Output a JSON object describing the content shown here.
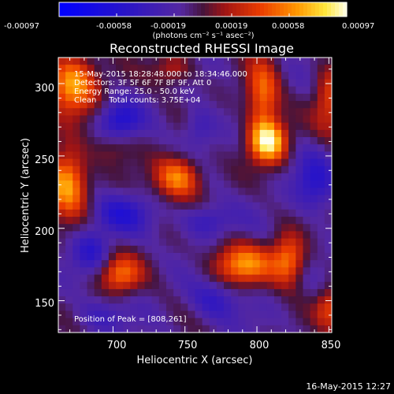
{
  "colorbar": {
    "ticks": [
      "-0.00097",
      "-0.00058",
      "-0.00019",
      "0.00019",
      "0.00058",
      "0.00097"
    ],
    "unit_label": "(photons cm⁻² s⁻¹ asec⁻²)",
    "range": [
      -0.00097,
      0.00097
    ]
  },
  "chart_data": {
    "type": "heatmap",
    "title": "Reconstructed RHESSI Image",
    "xlabel": "Heliocentric X (arcsec)",
    "ylabel": "Heliocentric Y (arcsec)",
    "xlim": [
      662,
      852
    ],
    "ylim": [
      128,
      318
    ],
    "x_ticks": [
      700,
      750,
      800,
      850
    ],
    "y_ticks": [
      150,
      200,
      250,
      300
    ],
    "annotations": [
      "15-May-2015 18:28:48.000 to 18:34:46.000",
      "Detectors: 3F 5F 6F 7F 8F 9F, Att 0",
      "Energy Range: 25.0 - 50.0 keV",
      "Clean     Total counts: 3.75E+04"
    ],
    "peak_label": "Position of Peak = [808,261]",
    "peak": [
      808,
      261
    ],
    "sources": [
      {
        "x": 808,
        "y": 260,
        "amp": 1.0,
        "sx": 9,
        "sy": 10
      },
      {
        "x": 804,
        "y": 290,
        "amp": 0.65,
        "sx": 8,
        "sy": 18
      },
      {
        "x": 672,
        "y": 300,
        "amp": 0.85,
        "sx": 12,
        "sy": 14
      },
      {
        "x": 668,
        "y": 232,
        "amp": 0.85,
        "sx": 10,
        "sy": 16
      },
      {
        "x": 745,
        "y": 235,
        "amp": 0.75,
        "sx": 11,
        "sy": 10
      },
      {
        "x": 790,
        "y": 175,
        "amp": 0.7,
        "sx": 15,
        "sy": 10
      },
      {
        "x": 822,
        "y": 178,
        "amp": 0.65,
        "sx": 8,
        "sy": 12
      },
      {
        "x": 705,
        "y": 168,
        "amp": 0.6,
        "sx": 10,
        "sy": 9
      },
      {
        "x": 742,
        "y": 310,
        "amp": 0.35,
        "sx": 10,
        "sy": 8
      },
      {
        "x": 850,
        "y": 290,
        "amp": 0.45,
        "sx": 7,
        "sy": 18
      },
      {
        "x": 850,
        "y": 145,
        "amp": 0.45,
        "sx": 6,
        "sy": 10
      },
      {
        "x": 700,
        "y": 255,
        "amp": 0.2,
        "sx": 10,
        "sy": 8
      }
    ],
    "dips": [
      {
        "x": 705,
        "y": 275,
        "amp": -0.45,
        "sx": 10,
        "sy": 9
      },
      {
        "x": 705,
        "y": 210,
        "amp": -0.4,
        "sx": 14,
        "sy": 9
      },
      {
        "x": 765,
        "y": 205,
        "amp": -0.35,
        "sx": 12,
        "sy": 8
      },
      {
        "x": 840,
        "y": 230,
        "amp": -0.4,
        "sx": 10,
        "sy": 14
      },
      {
        "x": 770,
        "y": 150,
        "amp": -0.35,
        "sx": 12,
        "sy": 10
      },
      {
        "x": 685,
        "y": 185,
        "amp": -0.35,
        "sx": 9,
        "sy": 10
      },
      {
        "x": 760,
        "y": 270,
        "amp": -0.3,
        "sx": 8,
        "sy": 10
      },
      {
        "x": 690,
        "y": 140,
        "amp": -0.25,
        "sx": 12,
        "sy": 8
      }
    ]
  },
  "footer": {
    "timestamp": "16-May-2015 12:27"
  }
}
